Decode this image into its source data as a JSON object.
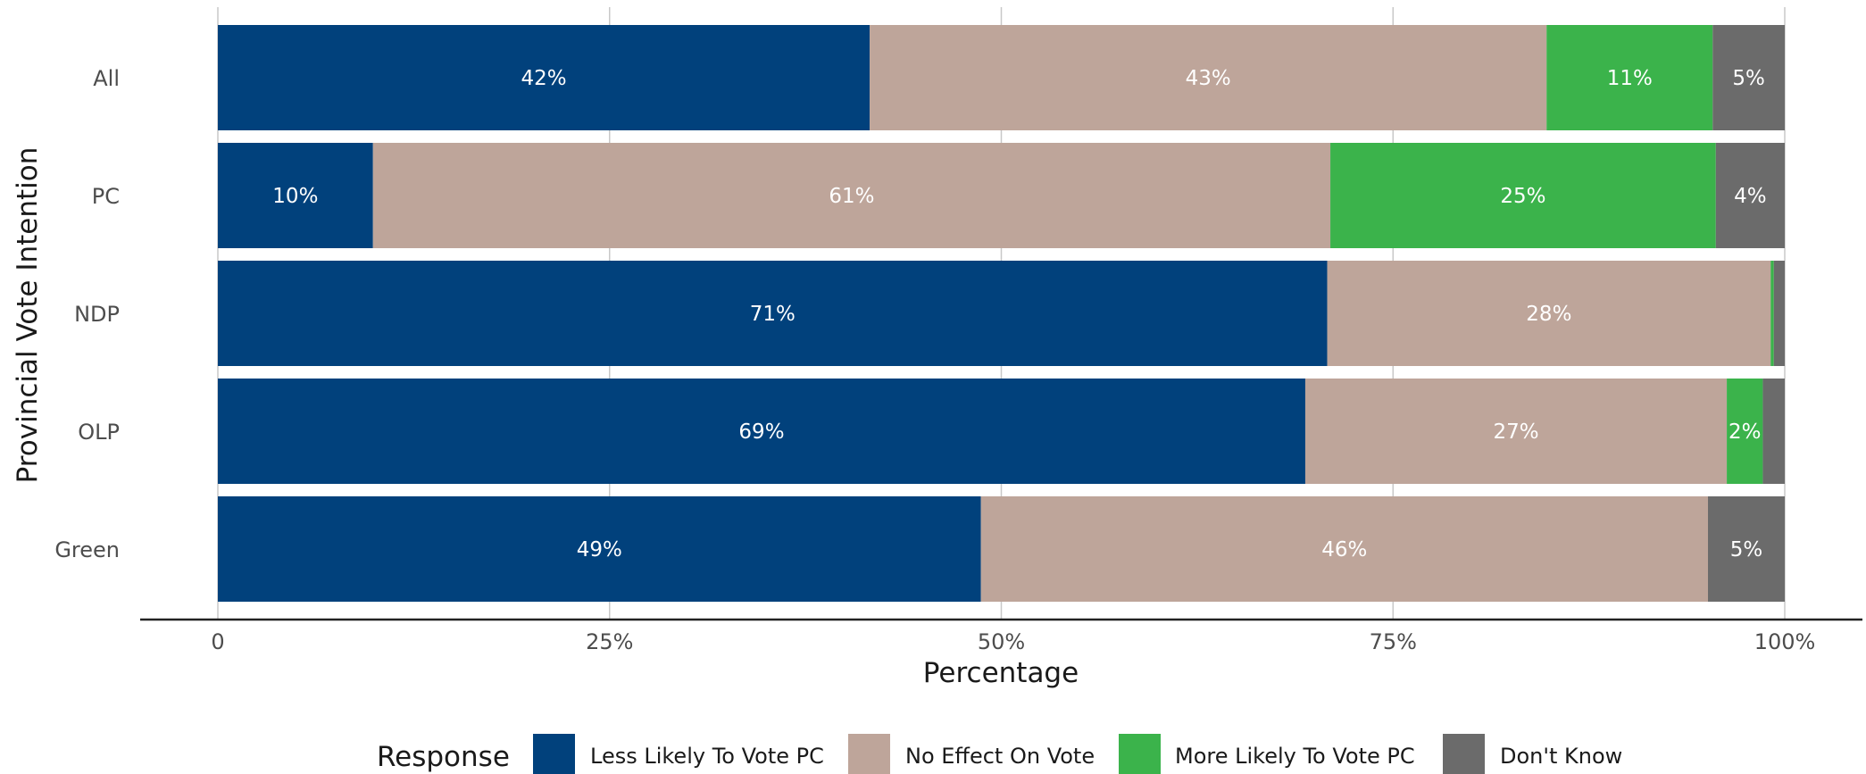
{
  "chart_data": {
    "type": "bar",
    "orientation": "horizontal",
    "stacked": true,
    "categories": [
      "All",
      "PC",
      "NDP",
      "OLP",
      "Green"
    ],
    "series": [
      {
        "name": "Less Likely To Vote PC",
        "color": "#01417c",
        "values": [
          41.6,
          9.9,
          70.8,
          69.4,
          48.7
        ],
        "labels": [
          "42%",
          "10%",
          "71%",
          "69%",
          "49%"
        ]
      },
      {
        "name": "No Effect On Vote",
        "color": "#bea59a",
        "values": [
          43.2,
          61.1,
          28.3,
          26.9,
          46.4
        ],
        "labels": [
          "43%",
          "61%",
          "28%",
          "27%",
          "46%"
        ]
      },
      {
        "name": "More Likely To Vote PC",
        "color": "#3bb34b",
        "values": [
          10.6,
          24.6,
          0.2,
          2.3,
          0.0
        ],
        "labels": [
          "11%",
          "25%",
          "",
          "2%",
          ""
        ]
      },
      {
        "name": "Don't Know",
        "color": "#6b6b6b",
        "values": [
          4.6,
          4.4,
          0.7,
          1.4,
          4.9
        ],
        "labels": [
          "5%",
          "4%",
          "",
          "",
          "5%"
        ]
      }
    ],
    "xlabel": "Percentage",
    "ylabel": "Provincial Vote Intention",
    "xlim": [
      0,
      100
    ],
    "xticks": [
      0,
      25,
      50,
      75,
      100
    ],
    "xtick_labels": [
      "0",
      "25%",
      "50%",
      "75%",
      "100%"
    ],
    "grid": true,
    "legend": {
      "title": "Response",
      "position": "bottom"
    }
  }
}
